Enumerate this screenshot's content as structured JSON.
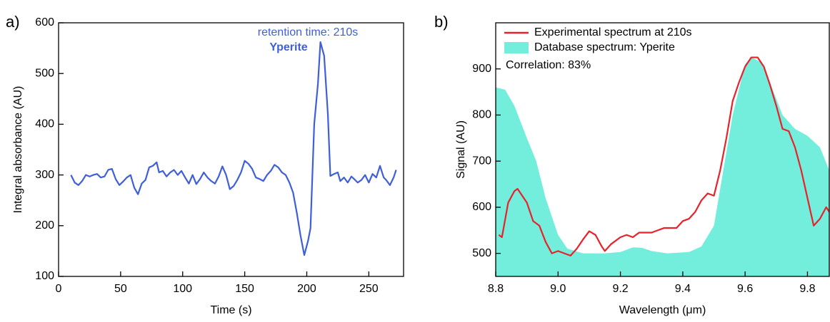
{
  "chart_data": [
    {
      "type": "line",
      "panel_label": "a)",
      "x_label": "Time (s)",
      "y_label": "Integral absorbance (AU)",
      "xlim": [
        0,
        278
      ],
      "ylim": [
        100,
        600
      ],
      "xticks": [
        0,
        50,
        100,
        150,
        200,
        250
      ],
      "yticks": [
        100,
        200,
        300,
        400,
        500,
        600
      ],
      "annotations": [
        "retention time: 210s",
        "Yperite"
      ],
      "annotation_color": "#3f5fd9",
      "series": [
        {
          "name": null,
          "color": "#3f5fd9",
          "style": "line",
          "x": [
            10,
            13,
            16,
            19,
            22,
            25,
            28,
            31,
            34,
            37,
            40,
            43,
            46,
            49,
            52,
            55,
            58,
            61,
            64,
            67,
            70,
            73,
            76,
            79,
            81,
            84,
            87,
            90,
            93,
            96,
            99,
            102,
            105,
            108,
            111,
            114,
            117,
            120,
            123,
            126,
            129,
            132,
            135,
            138,
            141,
            144,
            147,
            150,
            153,
            156,
            159,
            162,
            165,
            168,
            171,
            174,
            177,
            180,
            183,
            186,
            189,
            192,
            195,
            198,
            201,
            203,
            206,
            209,
            211,
            214,
            217,
            219,
            222,
            225,
            227,
            230,
            233,
            236,
            239,
            241,
            244,
            247,
            250,
            253,
            256,
            259,
            262,
            264,
            267,
            270,
            272
          ],
          "values": [
            300,
            285,
            280,
            288,
            300,
            297,
            300,
            302,
            295,
            297,
            310,
            312,
            292,
            280,
            287,
            295,
            300,
            275,
            262,
            283,
            290,
            315,
            318,
            325,
            305,
            308,
            297,
            305,
            310,
            300,
            308,
            295,
            283,
            300,
            282,
            292,
            305,
            295,
            288,
            283,
            297,
            317,
            300,
            272,
            278,
            290,
            305,
            328,
            322,
            312,
            295,
            292,
            288,
            300,
            308,
            320,
            315,
            305,
            300,
            285,
            265,
            225,
            180,
            142,
            170,
            195,
            400,
            480,
            562,
            535,
            420,
            298,
            302,
            305,
            288,
            295,
            285,
            297,
            290,
            285,
            290,
            300,
            285,
            302,
            295,
            318,
            295,
            290,
            280,
            295,
            310
          ]
        }
      ]
    },
    {
      "type": "line",
      "panel_label": "b)",
      "x_label": "Wavelength (μm)",
      "y_label": "Signal (AU)",
      "xlim": [
        8.8,
        9.87
      ],
      "ylim": [
        450,
        1000
      ],
      "xticks": [
        8.8,
        {
          "value": 9,
          "label": "9.0"
        },
        9.2,
        9.4,
        9.6,
        9.8
      ],
      "yticks": [
        500,
        600,
        700,
        800,
        900
      ],
      "annotations": [
        "Correlation: 83%"
      ],
      "series": [
        {
          "name": "Database spectrum: Yperite",
          "color": "#74eedc",
          "style": "area",
          "x": [
            8.8,
            8.83,
            8.86,
            8.9,
            8.93,
            8.96,
            9.0,
            9.03,
            9.08,
            9.15,
            9.2,
            9.24,
            9.27,
            9.3,
            9.35,
            9.42,
            9.46,
            9.5,
            9.53,
            9.56,
            9.6,
            9.62,
            9.65,
            9.68,
            9.72,
            9.76,
            9.8,
            9.84,
            9.87
          ],
          "values": [
            860,
            855,
            820,
            750,
            700,
            620,
            540,
            510,
            500,
            500,
            503,
            513,
            512,
            505,
            500,
            503,
            515,
            560,
            680,
            800,
            910,
            925,
            915,
            870,
            800,
            770,
            755,
            730,
            680
          ]
        },
        {
          "name": "Experimental spectrum at 210s",
          "color": "#e8222a",
          "style": "line",
          "x": [
            8.81,
            8.82,
            8.84,
            8.86,
            8.87,
            8.89,
            8.9,
            8.92,
            8.94,
            8.96,
            8.98,
            9.0,
            9.02,
            9.04,
            9.06,
            9.08,
            9.1,
            9.12,
            9.14,
            9.15,
            9.17,
            9.2,
            9.22,
            9.24,
            9.26,
            9.28,
            9.3,
            9.32,
            9.34,
            9.36,
            9.38,
            9.4,
            9.42,
            9.44,
            9.46,
            9.48,
            9.5,
            9.52,
            9.54,
            9.56,
            9.58,
            9.6,
            9.62,
            9.64,
            9.66,
            9.68,
            9.7,
            9.72,
            9.74,
            9.76,
            9.78,
            9.8,
            9.82,
            9.84,
            9.86,
            9.87
          ],
          "values": [
            540,
            535,
            610,
            635,
            640,
            620,
            610,
            570,
            560,
            525,
            500,
            505,
            500,
            495,
            510,
            530,
            548,
            540,
            515,
            505,
            520,
            535,
            540,
            535,
            545,
            545,
            545,
            550,
            555,
            555,
            555,
            570,
            575,
            590,
            615,
            630,
            625,
            680,
            750,
            830,
            870,
            905,
            925,
            925,
            905,
            865,
            820,
            770,
            765,
            730,
            680,
            620,
            560,
            575,
            600,
            590
          ]
        }
      ]
    }
  ]
}
